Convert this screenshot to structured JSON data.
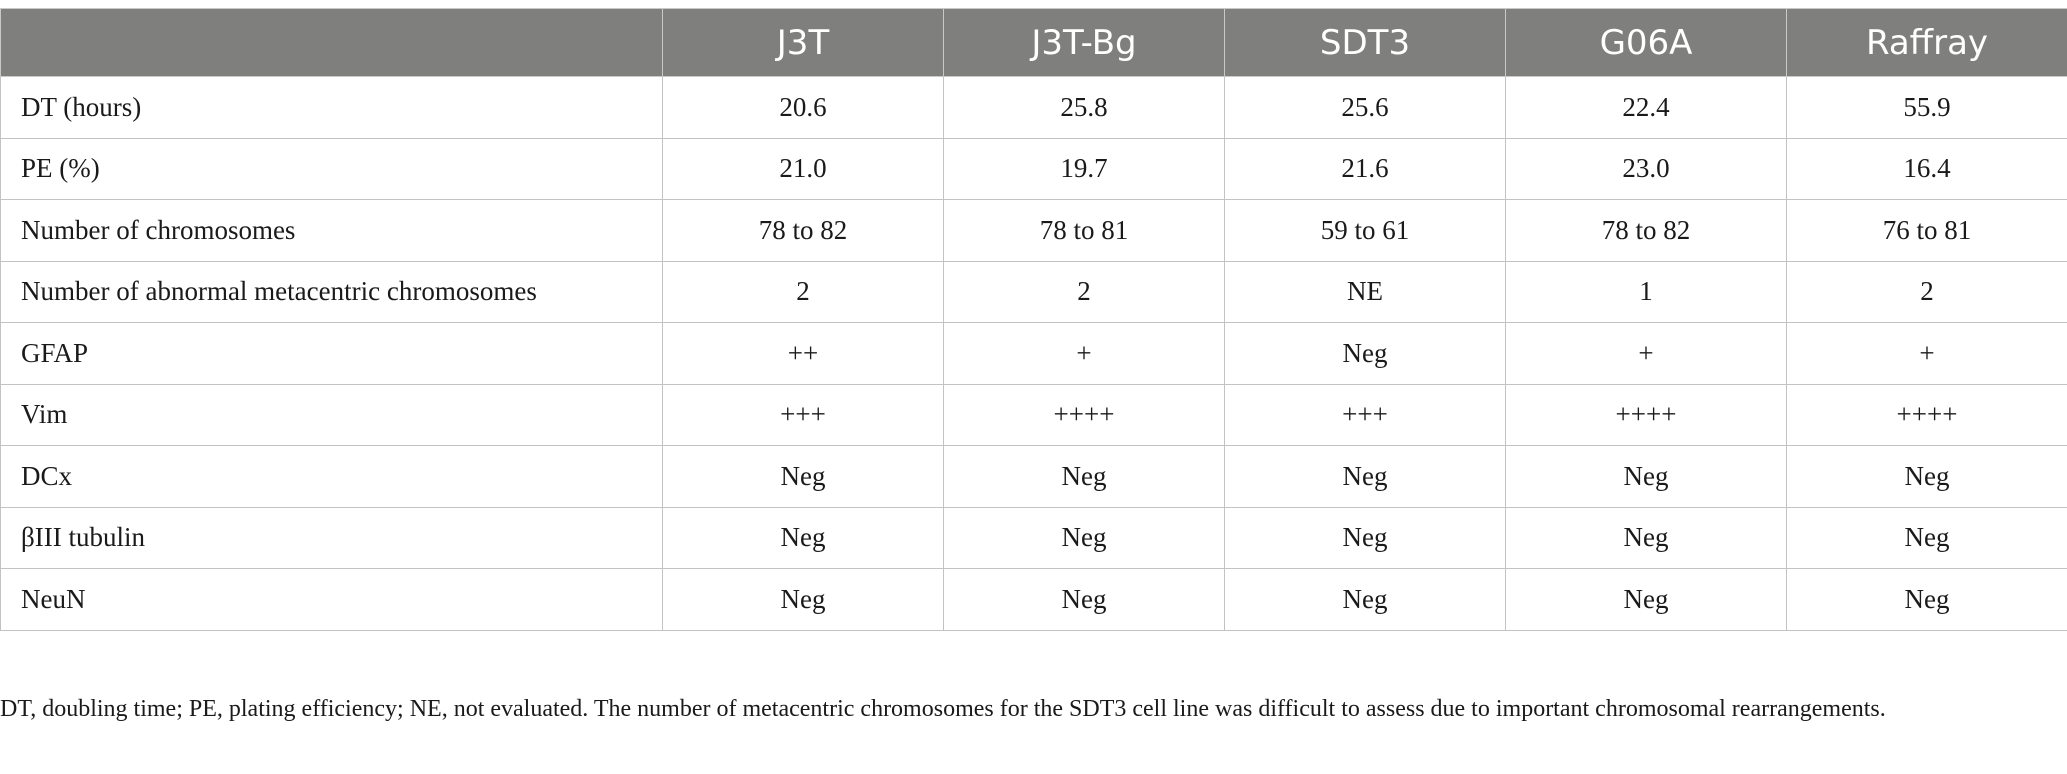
{
  "table": {
    "headers": [
      "",
      "J3T",
      "J3T-Bg",
      "SDT3",
      "G06A",
      "Raffray"
    ],
    "rows": [
      {
        "label": "DT (hours)",
        "cells": [
          "20.6",
          "25.8",
          "25.6",
          "22.4",
          "55.9"
        ]
      },
      {
        "label": "PE (%)",
        "cells": [
          "21.0",
          "19.7",
          "21.6",
          "23.0",
          "16.4"
        ]
      },
      {
        "label": "Number of chromosomes",
        "cells": [
          "78 to 82",
          "78 to 81",
          "59 to 61",
          "78 to 82",
          "76 to 81"
        ]
      },
      {
        "label": "Number of abnormal metacentric chromosomes",
        "cells": [
          "2",
          "2",
          "NE",
          "1",
          "2"
        ]
      },
      {
        "label": "GFAP",
        "cells": [
          "++",
          "+",
          "Neg",
          "+",
          "+"
        ]
      },
      {
        "label": "Vim",
        "cells": [
          "+++",
          "++++",
          "+++",
          "++++",
          "++++"
        ]
      },
      {
        "label": "DCx",
        "cells": [
          "Neg",
          "Neg",
          "Neg",
          "Neg",
          "Neg"
        ]
      },
      {
        "label": "βIII tubulin",
        "cells": [
          "Neg",
          "Neg",
          "Neg",
          "Neg",
          "Neg"
        ]
      },
      {
        "label": "NeuN",
        "cells": [
          "Neg",
          "Neg",
          "Neg",
          "Neg",
          "Neg"
        ]
      }
    ]
  },
  "footnote": "DT, doubling time; PE, plating efficiency; NE, not evaluated. The number of metacentric chromosomes for the SDT3 cell line was difficult to assess due to important chromosomal rearrangements.",
  "colors": {
    "header_bg": "#7f807e",
    "header_text": "#ffffff",
    "grid": "#c3c3c3"
  }
}
